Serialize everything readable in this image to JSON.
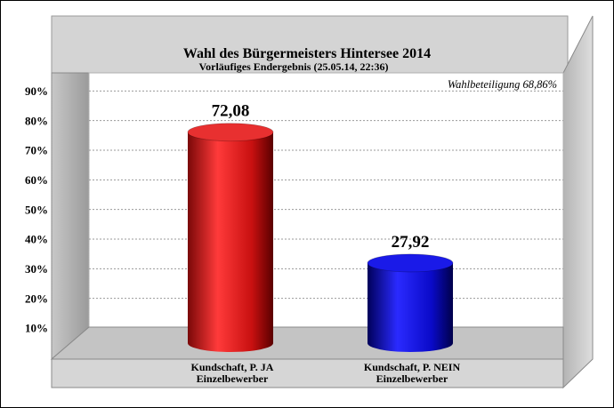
{
  "chart_data": {
    "type": "bar",
    "title": "Wahl des Bürgermeisters Hintersee 2014",
    "subtitle": "Vorläufiges Endergebnis (25.05.14, 22:36)",
    "annotation": "Wahlbeteiligung 68,86%",
    "categories": [
      [
        "Kundschaft, P. JA",
        "Einzelbewerber"
      ],
      [
        "Kundschaft, P. NEIN",
        "Einzelbewerber"
      ]
    ],
    "values": [
      72.08,
      27.92
    ],
    "value_labels": [
      "72,08",
      "27,92"
    ],
    "colors": [
      "#d81818",
      "#1010e0"
    ],
    "ylim": [
      0,
      90
    ],
    "yticks": [
      10,
      20,
      30,
      40,
      50,
      60,
      70,
      80,
      90
    ],
    "ytick_labels": [
      "10%",
      "20%",
      "30%",
      "40%",
      "50%",
      "60%",
      "70%",
      "80%",
      "90%"
    ],
    "grid": true,
    "xlabel": "",
    "ylabel": ""
  }
}
